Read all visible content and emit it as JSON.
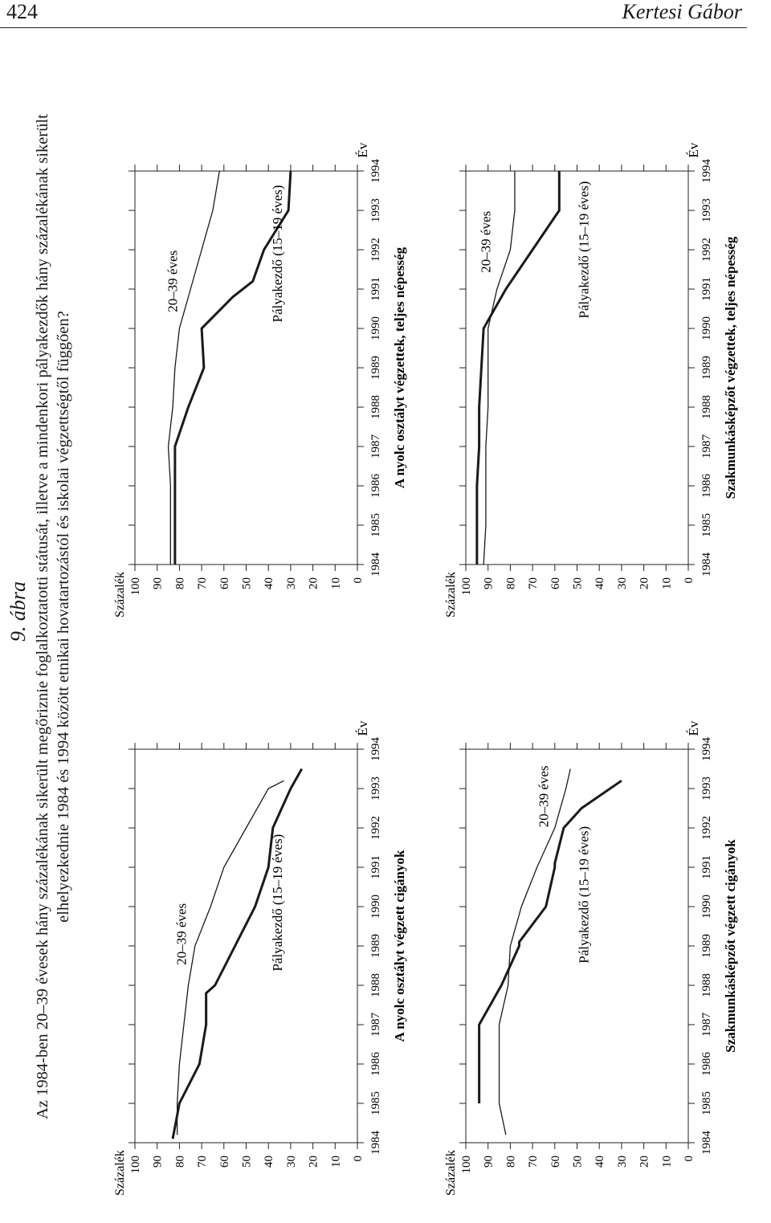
{
  "header": {
    "page_number": "424",
    "running_head": "Kertesi Gábor"
  },
  "figure": {
    "label": "9. ábra",
    "caption_line1": "Az 1984-ben 20–39 évesek hány százalékának sikerült megőriznie foglalkoztatotti státusát, illetve a mindenkori pályakezdők hány százalékának sikerült",
    "caption_line2": "elhelyezkednie 1984 és 1994 között etnikai hovatartozástól és iskolai végzettségtől függően?"
  },
  "chart_data": [
    {
      "type": "line",
      "title": "A nyolc osztályt végzett cigányok",
      "ylabel": "Százalék",
      "xlabel": "Év",
      "ylim": [
        0,
        100
      ],
      "yticks": [
        "0",
        "10",
        "20",
        "30",
        "40",
        "50",
        "60",
        "70",
        "80",
        "90",
        "100"
      ],
      "categories": [
        "1984",
        "1985",
        "1986",
        "1987",
        "1988",
        "1989",
        "1990",
        "1991",
        "1992",
        "1993",
        "1994"
      ],
      "series": [
        {
          "name": "20–39 éves",
          "style": "thin",
          "x": [
            1984.2,
            1985,
            1986,
            1987,
            1987.5,
            1988,
            1989,
            1990,
            1991,
            1992,
            1993,
            1993.2
          ],
          "values": [
            81,
            81,
            80,
            78,
            77,
            76,
            73,
            66,
            60,
            50,
            40,
            33
          ]
        },
        {
          "name": "Pályakezdő (15–19 éves)",
          "style": "thick",
          "x": [
            1984.1,
            1985,
            1986,
            1987,
            1987.8,
            1988,
            1989,
            1990,
            1991,
            1992,
            1993,
            1993.5
          ],
          "values": [
            83,
            80,
            71,
            68,
            68,
            64,
            55,
            46,
            40,
            38,
            30,
            25
          ]
        }
      ],
      "series_labels": [
        {
          "text": "20–39 éves",
          "x": 1989.3,
          "y": 77
        },
        {
          "text": "Pályakezdő (15–19 éves)",
          "x": 1990.1,
          "y": 34
        }
      ]
    },
    {
      "type": "line",
      "title": "A nyolc osztályt végzettek, teljes népesség",
      "ylabel": "Százalék",
      "xlabel": "Év",
      "ylim": [
        0,
        100
      ],
      "yticks": [
        "0",
        "10",
        "20",
        "30",
        "40",
        "50",
        "60",
        "70",
        "80",
        "90",
        "100"
      ],
      "categories": [
        "1984",
        "1985",
        "1986",
        "1987",
        "1988",
        "1989",
        "1990",
        "1991",
        "1992",
        "1993",
        "1994"
      ],
      "series": [
        {
          "name": "20–39 éves",
          "style": "thin",
          "x": [
            1984,
            1985,
            1986,
            1987,
            1988,
            1989,
            1990,
            1991,
            1992,
            1993,
            1994
          ],
          "values": [
            84,
            84,
            84,
            85,
            83,
            82,
            80,
            75,
            70,
            65,
            62
          ]
        },
        {
          "name": "Pályakezdő (15–19 éves)",
          "style": "thick",
          "x": [
            1984,
            1985,
            1986,
            1987,
            1988,
            1989,
            1990,
            1990.8,
            1991.2,
            1992,
            1993,
            1994
          ],
          "values": [
            82,
            82,
            82,
            82,
            76,
            69,
            70,
            56,
            47,
            42,
            31,
            30
          ]
        }
      ],
      "series_labels": [
        {
          "text": "20–39 éves",
          "x": 1991.2,
          "y": 81
        },
        {
          "text": "Pályakezdő (15–19 éves)",
          "x": 1991.9,
          "y": 34
        }
      ]
    },
    {
      "type": "line",
      "title": "Szakmunkásképzőt végzett cigányok",
      "ylabel": "Százalék",
      "xlabel": "Év",
      "ylim": [
        0,
        100
      ],
      "yticks": [
        "0",
        "10",
        "20",
        "30",
        "40",
        "50",
        "60",
        "70",
        "80",
        "90",
        "100"
      ],
      "categories": [
        "1984",
        "1985",
        "1986",
        "1987",
        "1988",
        "1989",
        "1990",
        "1991",
        "1992",
        "1993",
        "1994"
      ],
      "series": [
        {
          "name": "20–39 éves",
          "style": "thin",
          "x": [
            1984.2,
            1985,
            1986,
            1987,
            1988,
            1989,
            1990,
            1991,
            1992,
            1993,
            1993.5
          ],
          "values": [
            82,
            85,
            85,
            85,
            81,
            80,
            75,
            68,
            60,
            55,
            53
          ]
        },
        {
          "name": "Pályakezdő (15–19 éves)",
          "style": "thick",
          "x": [
            1985,
            1986,
            1987,
            1988,
            1989,
            1989.1,
            1990,
            1991,
            1991.1,
            1992,
            1992.5,
            1993.2
          ],
          "values": [
            94,
            94,
            94,
            84,
            76,
            76,
            64,
            60,
            60,
            56,
            48,
            30
          ]
        }
      ],
      "series_labels": [
        {
          "text": "20–39 éves",
          "x": 1992.8,
          "y": 63
        },
        {
          "text": "Pályakezdő (15–19 éves)",
          "x": 1990.3,
          "y": 45
        }
      ]
    },
    {
      "type": "line",
      "title": "Szakmunkásképzőt végzettek, teljes népesség",
      "ylabel": "Százalék",
      "xlabel": "Év",
      "ylim": [
        0,
        100
      ],
      "yticks": [
        "0",
        "10",
        "20",
        "30",
        "40",
        "50",
        "60",
        "70",
        "80",
        "90",
        "100"
      ],
      "categories": [
        "1984",
        "1985",
        "1986",
        "1987",
        "1988",
        "1989",
        "1990",
        "1991",
        "1992",
        "1993",
        "1994"
      ],
      "series": [
        {
          "name": "20–39 éves",
          "style": "thin",
          "x": [
            1984,
            1985,
            1986,
            1987,
            1988,
            1989,
            1990,
            1991,
            1992,
            1993,
            1994
          ],
          "values": [
            92,
            91,
            91,
            91,
            90,
            90,
            90,
            86,
            80,
            78,
            78
          ]
        },
        {
          "name": "Pályakezdő (15–19 éves)",
          "style": "thick",
          "x": [
            1984,
            1985,
            1986,
            1987,
            1988,
            1989,
            1990,
            1991,
            1992,
            1993,
            1994
          ],
          "values": [
            95,
            95,
            95,
            94,
            94,
            93,
            92,
            82,
            70,
            58,
            58
          ]
        }
      ],
      "series_labels": [
        {
          "text": "20–39 éves",
          "x": 1992.2,
          "y": 89
        },
        {
          "text": "Pályakezdő (15–19 éves)",
          "x": 1992.0,
          "y": 45
        }
      ]
    }
  ]
}
